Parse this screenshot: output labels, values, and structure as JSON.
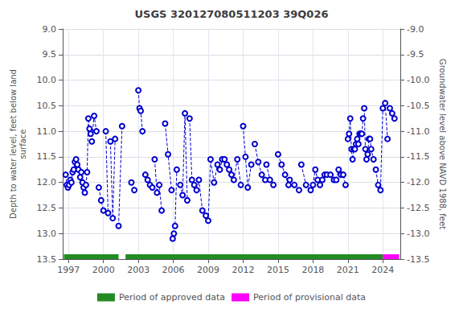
{
  "chart_data": {
    "type": "line",
    "title": "USGS 320127080511203 39Q026",
    "ylabel": "Depth to water level, feet below land\nsurface",
    "y2label": "Groundwater level above NAVD 1988, feet",
    "xlim": [
      1996.5,
      2025.5
    ],
    "xticks": [
      1997,
      2000,
      2003,
      2006,
      2009,
      2012,
      2015,
      2018,
      2021,
      2024
    ],
    "ylim": [
      13.5,
      9.0
    ],
    "yticks": [
      {
        "value": 9.0,
        "label": "9.0"
      },
      9.5,
      {
        "value": 10.0,
        "label": "10.0"
      },
      10.5,
      {
        "value": 11.0,
        "label": "11.0"
      },
      11.5,
      {
        "value": 12.0,
        "label": "12.0"
      },
      12.5,
      {
        "value": 13.0,
        "label": "13.0"
      },
      13.5
    ],
    "y2lim": [
      -13.5,
      -9.0
    ],
    "y2ticks": [
      {
        "value": -9.0,
        "label": "-9.0"
      },
      -9.5,
      {
        "value": -10.0,
        "label": "-10.0"
      },
      -10.5,
      {
        "value": -11.0,
        "label": "-11.0"
      },
      -11.5,
      {
        "value": -12.0,
        "label": "-12.0"
      },
      -12.5,
      {
        "value": -13.0,
        "label": "-13.0"
      },
      -13.5
    ],
    "grid": true,
    "legend": "bottom",
    "color": "#0000CC",
    "line_style": "dashed",
    "marker": "circle",
    "series": [
      {
        "x": [
          1996.75,
          1996.85,
          1996.95,
          1997.05,
          1997.15,
          1997.25,
          1997.35,
          1997.45,
          1997.55,
          1997.65,
          1997.75,
          1997.85
        ],
        "values": [
          11.85,
          12.05,
          12.1,
          12.05,
          11.95,
          12.0,
          11.8,
          11.75,
          11.6,
          11.55,
          11.65,
          11.75
        ]
      },
      {
        "x": [
          1998.0,
          1998.1,
          1998.2,
          1998.3,
          1998.4,
          1998.5,
          1998.6,
          1998.7,
          1998.8,
          1998.9
        ],
        "values": [
          11.9,
          11.8,
          12.0,
          12.1,
          12.2,
          12.05,
          11.8,
          10.75,
          10.95,
          11.05
        ]
      },
      {
        "x": [
          1999.0,
          1999.2,
          1999.4
        ],
        "values": [
          11.2,
          10.7,
          11.0
        ]
      },
      {
        "x": [
          1999.6,
          1999.8,
          2000.0
        ],
        "values": [
          12.1,
          12.35,
          12.55
        ]
      },
      {
        "x": [
          2000.2,
          2000.4
        ],
        "values": [
          11.0,
          12.6
        ]
      },
      {
        "x": [
          2000.6,
          2000.8,
          2001.0
        ],
        "values": [
          11.2,
          12.7,
          11.15
        ]
      },
      {
        "x": [
          2001.3,
          2001.6
        ],
        "values": [
          12.85,
          10.9
        ]
      },
      {
        "x": [
          2002.4,
          2002.65
        ],
        "values": [
          12.0,
          12.15
        ]
      },
      {
        "x": [
          2003.0,
          2003.1,
          2003.2,
          2003.35
        ],
        "values": [
          10.2,
          10.55,
          10.6,
          11.0
        ]
      },
      {
        "x": [
          2003.6,
          2003.8,
          2004.0,
          2004.2
        ],
        "values": [
          11.85,
          11.95,
          12.05,
          12.1
        ]
      },
      {
        "x": [
          2004.4,
          2004.6,
          2004.8,
          2005.0
        ],
        "values": [
          11.55,
          12.2,
          12.05,
          12.55
        ]
      },
      {
        "x": [
          2005.3,
          2005.55,
          2005.85
        ],
        "values": [
          10.85,
          11.45,
          12.15
        ]
      },
      {
        "x": [
          2005.95,
          2006.05,
          2006.15,
          2006.3
        ],
        "values": [
          13.1,
          13.0,
          12.85,
          11.75
        ]
      },
      {
        "x": [
          2006.6,
          2006.8,
          2007.0,
          2007.2
        ],
        "values": [
          12.05,
          12.25,
          10.65,
          12.35
        ]
      },
      {
        "x": [
          2007.4,
          2007.6,
          2007.8
        ],
        "values": [
          10.75,
          11.95,
          12.05
        ]
      },
      {
        "x": [
          2008.0,
          2008.2,
          2008.5,
          2008.8
        ],
        "values": [
          12.15,
          11.95,
          12.55,
          12.65
        ]
      },
      {
        "x": [
          2009.0,
          2009.2,
          2009.5,
          2009.8
        ],
        "values": [
          12.75,
          11.55,
          12.0,
          11.65
        ]
      },
      {
        "x": [
          2010.0,
          2010.2,
          2010.4,
          2010.6,
          2010.8
        ],
        "values": [
          11.75,
          11.55,
          11.55,
          11.65,
          11.75
        ]
      },
      {
        "x": [
          2011.0,
          2011.2,
          2011.5,
          2011.8
        ],
        "values": [
          11.85,
          11.95,
          11.55,
          12.05
        ]
      },
      {
        "x": [
          2012.0,
          2012.2,
          2012.4,
          2012.7
        ],
        "values": [
          10.9,
          11.5,
          12.1,
          11.65
        ]
      },
      {
        "x": [
          2013.0,
          2013.3,
          2013.6,
          2013.9
        ],
        "values": [
          11.25,
          11.6,
          11.85,
          11.95
        ]
      },
      {
        "x": [
          2014.0,
          2014.3,
          2014.6
        ],
        "values": [
          11.65,
          11.95,
          12.05
        ]
      },
      {
        "x": [
          2015.0,
          2015.3,
          2015.6,
          2015.9
        ],
        "values": [
          11.45,
          11.65,
          11.85,
          12.05
        ]
      },
      {
        "x": [
          2016.0,
          2016.4,
          2016.8
        ],
        "values": [
          11.95,
          12.05,
          12.15
        ]
      },
      {
        "x": [
          2017.0,
          2017.4,
          2017.8
        ],
        "values": [
          11.65,
          12.05,
          12.15
        ]
      },
      {
        "x": [
          2018.0,
          2018.2,
          2018.4,
          2018.6,
          2018.8
        ],
        "values": [
          12.05,
          11.75,
          11.95,
          12.05,
          11.95
        ]
      },
      {
        "x": [
          2019.0,
          2019.2,
          2019.5,
          2019.8
        ],
        "values": [
          11.85,
          11.85,
          11.85,
          11.95
        ]
      },
      {
        "x": [
          2020.0,
          2020.2,
          2020.4,
          2020.6,
          2020.8
        ],
        "values": [
          11.95,
          11.75,
          11.85,
          11.85,
          12.05
        ]
      },
      {
        "x": [
          2021.0,
          2021.1,
          2021.2,
          2021.3,
          2021.4,
          2021.5,
          2021.6,
          2021.7,
          2021.8,
          2021.9,
          2022.0,
          2022.1,
          2022.2,
          2022.3
        ],
        "values": [
          11.15,
          11.05,
          10.75,
          11.35,
          11.55,
          11.35,
          11.35,
          11.25,
          11.15,
          11.25,
          11.05,
          11.05,
          11.05,
          10.75
        ]
      },
      {
        "x": [
          2022.4,
          2022.5,
          2022.6,
          2022.7,
          2022.8,
          2022.9,
          2023.0,
          2023.2
        ],
        "values": [
          10.55,
          11.35,
          11.55,
          11.45,
          11.15,
          11.15,
          11.35,
          11.55
        ]
      },
      {
        "x": [
          2023.4,
          2023.6,
          2023.8,
          2024.0
        ],
        "values": [
          11.75,
          12.05,
          12.15,
          10.55
        ]
      },
      {
        "x": [
          2024.2,
          2024.4
        ],
        "values": [
          10.45,
          11.15
        ]
      },
      {
        "x": [
          2024.6,
          2024.8,
          2025.0
        ],
        "values": [
          10.55,
          10.65,
          10.75
        ]
      }
    ],
    "periods": [
      {
        "name": "Period of approved data",
        "color": "#228B22",
        "ranges": [
          [
            1996.6,
            2001.3
          ],
          [
            2001.9,
            2024.0
          ]
        ]
      },
      {
        "name": "Period of provisional data",
        "color": "#FF00FF",
        "ranges": [
          [
            2024.0,
            2025.4
          ]
        ]
      }
    ]
  }
}
